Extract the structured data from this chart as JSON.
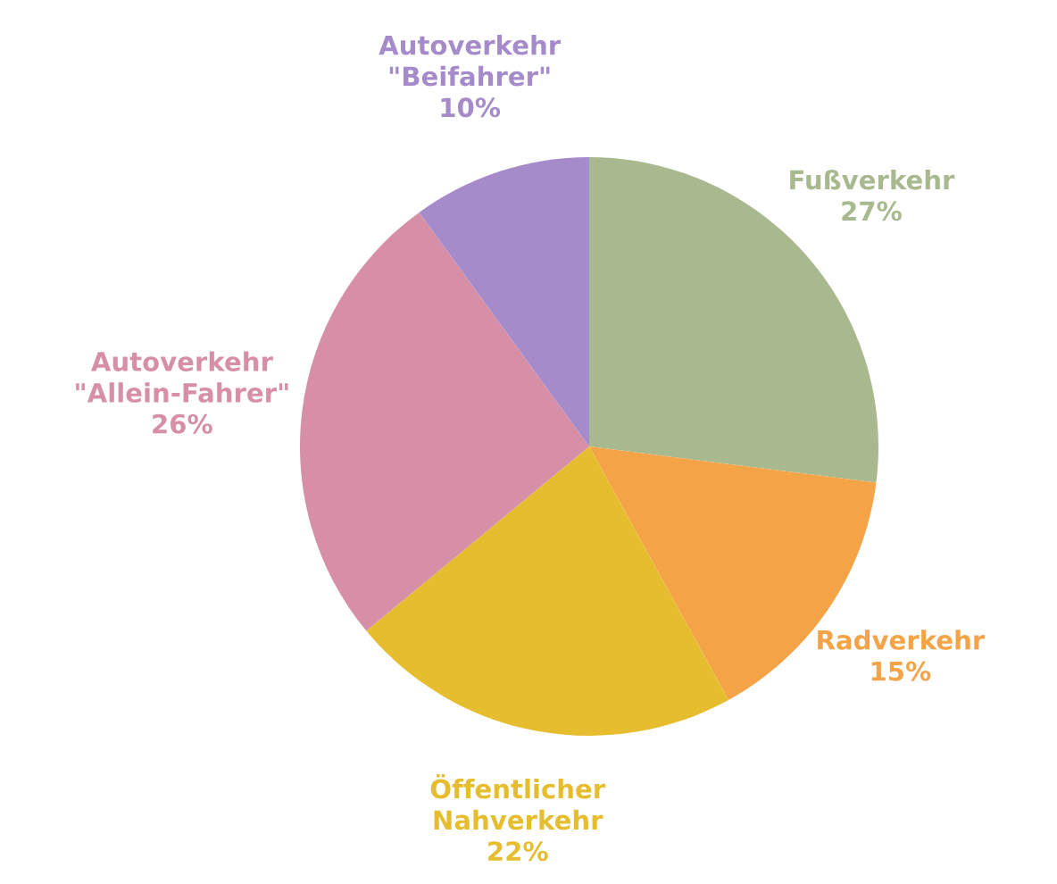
{
  "chart_data": {
    "type": "pie",
    "categories": [
      "Fußverkehr",
      "Radverkehr",
      "Öffentlicher\nNahverkehr",
      "Autoverkehr\n\"Allein-Fahrer\"",
      "Autoverkehr\n\"Beifahrer\""
    ],
    "values": [
      27,
      15,
      22,
      26,
      10
    ],
    "colors": [
      "#a9b98f",
      "#f4a447",
      "#e6bd2f",
      "#d68fa6",
      "#a68bcb"
    ],
    "value_labels": [
      "27%",
      "15%",
      "22%",
      "26%",
      "10%"
    ]
  }
}
